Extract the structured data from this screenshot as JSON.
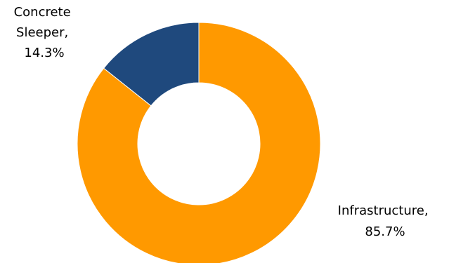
{
  "chart_data": {
    "type": "pie",
    "variant": "donut",
    "title": "",
    "slices": [
      {
        "category": "Infrastructure",
        "value": 85.7,
        "value_label": "85.7%",
        "color": "#FF9900",
        "label_lines": [
          "Infrastructure,",
          "85.7%"
        ]
      },
      {
        "category": "Concrete Sleeper",
        "value": 14.3,
        "value_label": "14.3%",
        "color": "#1F497D",
        "label_lines": [
          "Concrete",
          "Sleeper,",
          "14.3%"
        ]
      }
    ],
    "legend": "none"
  }
}
